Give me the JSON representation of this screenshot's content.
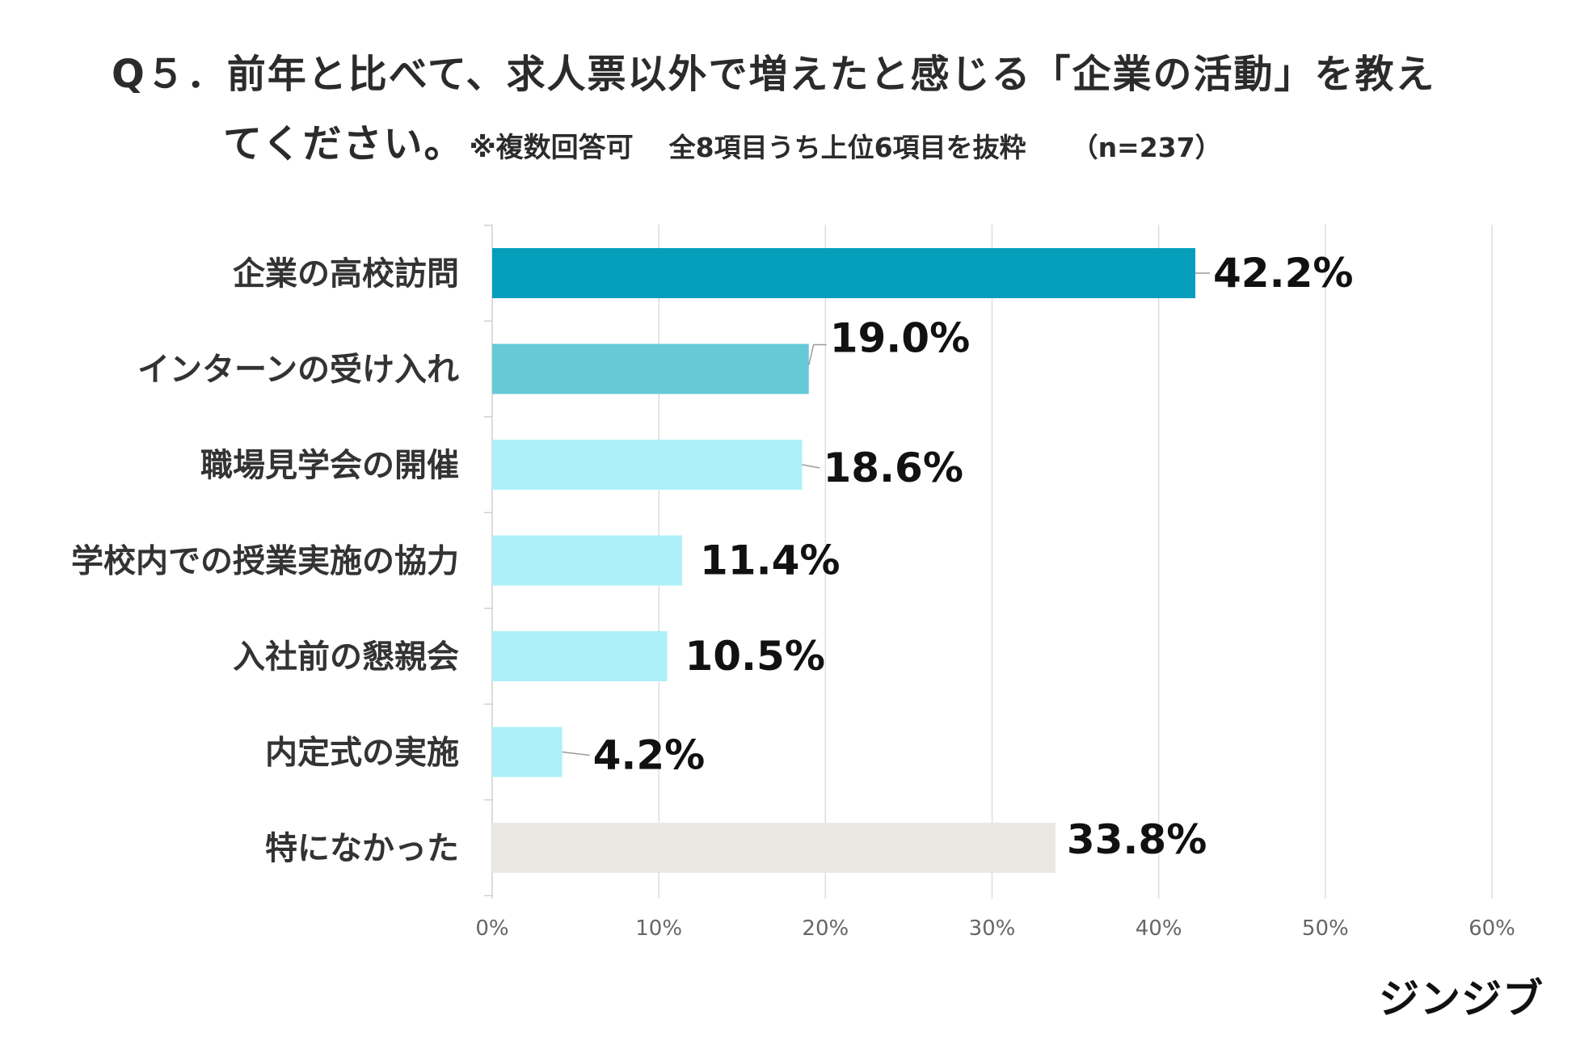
{
  "title": {
    "line1": "Q５．前年と比べて、求人票以外で増えたと感じる「企業の活動」を教え",
    "line2_main": "てください。",
    "line2_note": "※複数回答可",
    "line2_sub": "全8項目うち上位6項目を抜粋",
    "line2_n": "（n=237）"
  },
  "logo": "ジンジブ",
  "colors": {
    "top": "#059fbc",
    "second": "#65cad6",
    "rest": "#adf0fa",
    "none": "#ebe8e3",
    "grid": "#dedede",
    "axis_text": "#666666",
    "label_text": "#333333",
    "value_text": "#111111"
  },
  "chart_data": {
    "type": "bar",
    "orientation": "horizontal",
    "categories": [
      "企業の高校訪問",
      "インターンの受け入れ",
      "職場見学会の開催",
      "学校内での授業実施の協力",
      "入社前の懇親会",
      "内定式の実施",
      "特になかった"
    ],
    "values": [
      42.2,
      19.0,
      18.6,
      11.4,
      10.5,
      4.2,
      33.8
    ],
    "value_labels": [
      "42.2%",
      "19.0%",
      "18.6%",
      "11.4%",
      "10.5%",
      "4.2%",
      "33.8%"
    ],
    "bar_colors": [
      "#059fbc",
      "#65cad6",
      "#adf0fa",
      "#adf0fa",
      "#adf0fa",
      "#adf0fa",
      "#ebe8e3"
    ],
    "xlim": [
      0,
      60
    ],
    "xticks": [
      0,
      10,
      20,
      30,
      40,
      50,
      60
    ],
    "xtick_labels": [
      "0%",
      "10%",
      "20%",
      "30%",
      "40%",
      "50%",
      "60%"
    ],
    "grid": true,
    "legend": "none"
  }
}
